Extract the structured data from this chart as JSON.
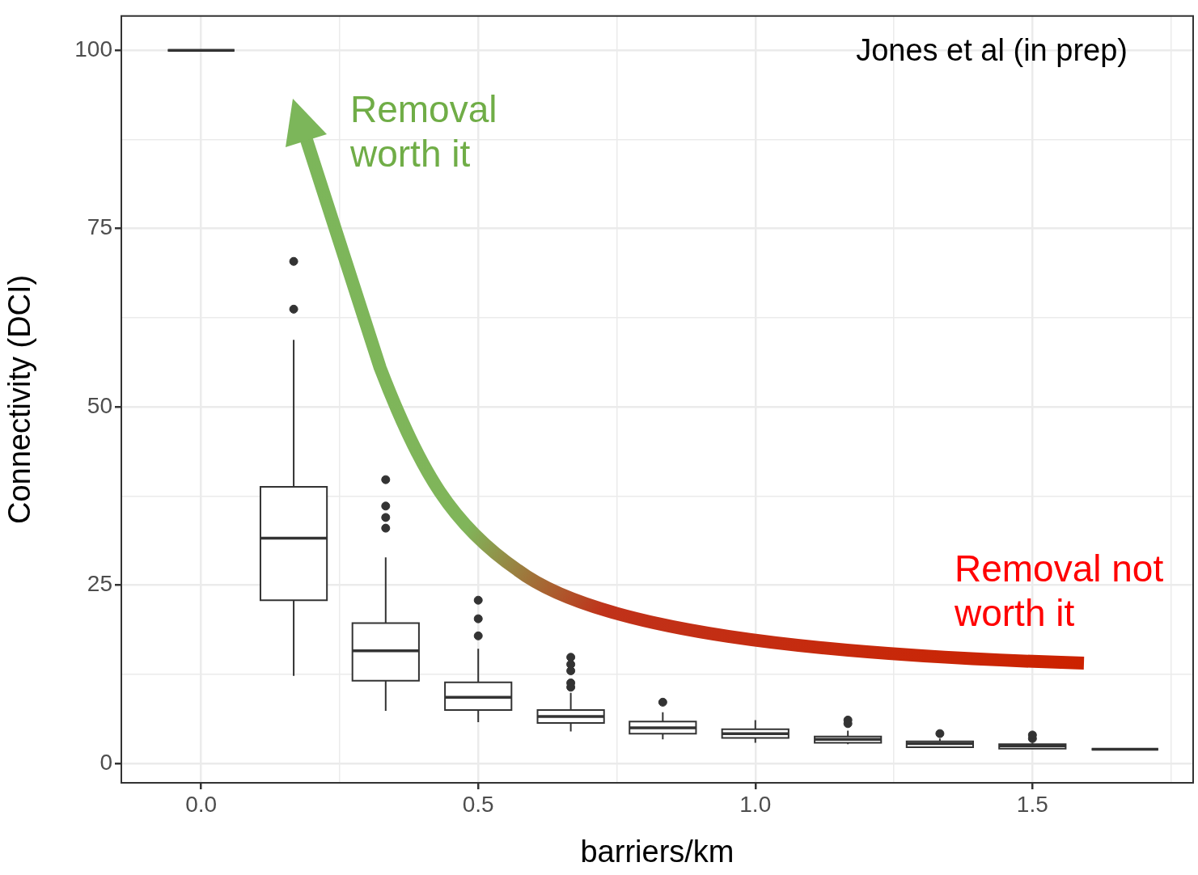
{
  "chart_data": {
    "type": "box",
    "xlabel": "barriers/km",
    "ylabel": "Connectivity (DCI)",
    "x": [
      0,
      0.167,
      0.333,
      0.5,
      0.667,
      0.833,
      1.0,
      1.167,
      1.333,
      1.5,
      1.667
    ],
    "boxes": [
      {
        "low": 100,
        "q1": 100,
        "median": 100,
        "q3": 100,
        "high": 100
      },
      {
        "low": 12.3,
        "q1": 22.9,
        "median": 31.6,
        "q3": 38.8,
        "high": 59.4,
        "outliers": [
          63.7,
          70.4
        ]
      },
      {
        "low": 7.4,
        "q1": 11.6,
        "median": 15.8,
        "q3": 19.7,
        "high": 28.9,
        "outliers": [
          33.0,
          34.5,
          36.1,
          39.8
        ]
      },
      {
        "low": 5.8,
        "q1": 7.5,
        "median": 9.3,
        "q3": 11.4,
        "high": 16.1,
        "outliers": [
          17.9,
          20.3,
          22.9
        ]
      },
      {
        "low": 4.5,
        "q1": 5.7,
        "median": 6.6,
        "q3": 7.5,
        "high": 9.9,
        "outliers": [
          10.7,
          11.3,
          13.0,
          13.9,
          14.9
        ]
      },
      {
        "low": 3.4,
        "q1": 4.2,
        "median": 5.0,
        "q3": 5.9,
        "high": 7.2,
        "outliers": [
          8.6
        ]
      },
      {
        "low": 2.9,
        "q1": 3.6,
        "median": 4.2,
        "q3": 4.8,
        "high": 6.1
      },
      {
        "low": 2.7,
        "q1": 2.9,
        "median": 3.4,
        "q3": 3.8,
        "high": 4.6,
        "outliers": [
          5.6,
          6.1
        ]
      },
      {
        "low": 2.3,
        "q1": 2.3,
        "median": 2.8,
        "q3": 3.1,
        "high": 3.5,
        "outliers": [
          4.2
        ]
      },
      {
        "low": 2.1,
        "q1": 2.1,
        "median": 2.5,
        "q3": 2.7,
        "high": 2.9,
        "outliers": [
          3.5,
          4.0
        ]
      },
      {
        "low": 2.0,
        "q1": 2.0,
        "median": 2.0,
        "q3": 2.0,
        "high": 2.0
      }
    ],
    "xlim": [
      -0.144,
      1.79
    ],
    "xticks": [
      {
        "value": 0,
        "label": "0.0"
      },
      {
        "value": 0.25,
        "label": null
      },
      {
        "value": 0.5,
        "label": "0.5"
      },
      {
        "value": 0.75,
        "label": null
      },
      {
        "value": 1,
        "label": "1.0"
      },
      {
        "value": 1.25,
        "label": null
      },
      {
        "value": 1.5,
        "label": "1.5"
      },
      {
        "value": 1.75,
        "label": null
      }
    ],
    "ylim": [
      -2.7,
      104.8
    ],
    "yticks": [
      0,
      {
        "value": 12.5,
        "label": null
      },
      25,
      {
        "value": 37.5,
        "label": null
      },
      50,
      {
        "value": 62.5,
        "label": null
      },
      75,
      {
        "value": 87.5,
        "label": null
      },
      100
    ],
    "grid": true,
    "annotations": [
      "Jones et al (in prep)",
      "Removal\nworth it",
      "Removal not\nworth it"
    ]
  }
}
